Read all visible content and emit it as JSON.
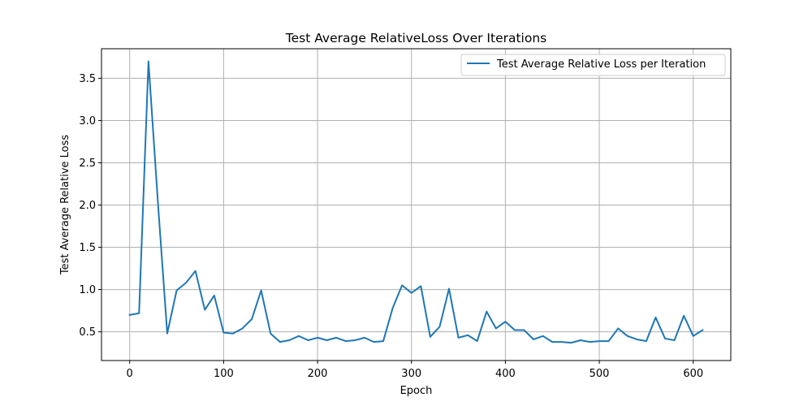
{
  "chart_data": {
    "type": "line",
    "title": "Test Average RelativeLoss Over Iterations",
    "xlabel": "Epoch",
    "ylabel": "Test Average Relative Loss",
    "xlim": [
      -30,
      640
    ],
    "ylim": [
      0.16,
      3.85
    ],
    "xticks": [
      0,
      100,
      200,
      300,
      400,
      500,
      600
    ],
    "yticks": [
      0.5,
      1.0,
      1.5,
      2.0,
      2.5,
      3.0,
      3.5
    ],
    "xtick_labels": [
      "0",
      "100",
      "200",
      "300",
      "400",
      "500",
      "600"
    ],
    "ytick_labels": [
      "0.5",
      "1.0",
      "1.5",
      "2.0",
      "2.5",
      "3.0",
      "3.5"
    ],
    "grid": true,
    "legend_position": "top-right",
    "series": [
      {
        "name": "Test Average Relative Loss per Iteration",
        "color": "#1f77b4",
        "x": [
          0,
          10,
          20,
          30,
          40,
          50,
          60,
          70,
          80,
          90,
          100,
          110,
          120,
          130,
          140,
          150,
          160,
          170,
          180,
          190,
          200,
          210,
          220,
          230,
          240,
          250,
          260,
          270,
          280,
          290,
          300,
          310,
          320,
          330,
          340,
          350,
          360,
          370,
          380,
          390,
          400,
          410,
          420,
          430,
          440,
          450,
          460,
          470,
          480,
          490,
          500,
          510,
          520,
          530,
          540,
          550,
          560,
          570,
          580,
          590,
          600,
          610
        ],
        "y": [
          0.7,
          0.72,
          3.7,
          2.04,
          0.48,
          0.99,
          1.08,
          1.22,
          0.76,
          0.93,
          0.49,
          0.48,
          0.54,
          0.65,
          0.99,
          0.48,
          0.38,
          0.4,
          0.45,
          0.4,
          0.43,
          0.4,
          0.43,
          0.39,
          0.4,
          0.43,
          0.38,
          0.39,
          0.78,
          1.05,
          0.96,
          1.04,
          0.44,
          0.56,
          1.01,
          0.43,
          0.46,
          0.39,
          0.74,
          0.54,
          0.62,
          0.52,
          0.52,
          0.41,
          0.45,
          0.38,
          0.38,
          0.37,
          0.4,
          0.38,
          0.39,
          0.39,
          0.54,
          0.45,
          0.41,
          0.39,
          0.67,
          0.42,
          0.4,
          0.69,
          0.45,
          0.52
        ]
      }
    ]
  }
}
